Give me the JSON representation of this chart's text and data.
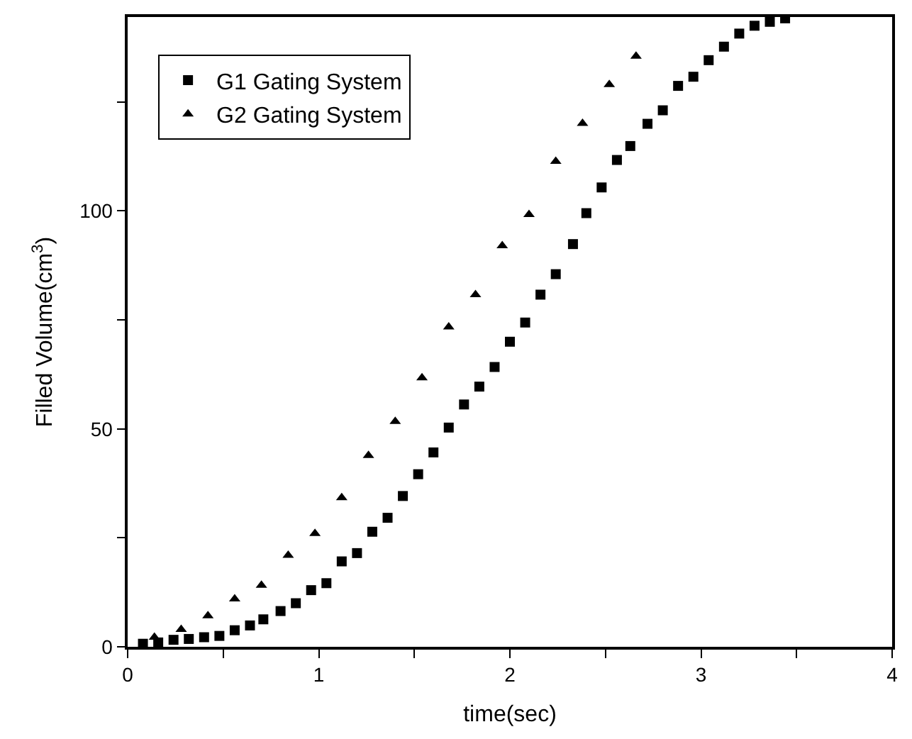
{
  "chart_data": {
    "type": "scatter",
    "xlabel": "time(sec)",
    "ylabel": "Filled Volume(cm$^{3}$)",
    "xlim": [
      0,
      4
    ],
    "ylim": [
      0,
      144.5
    ],
    "xticks": [
      0,
      {
        "value": 0.5,
        "label": null
      },
      1,
      {
        "value": 1.5,
        "label": null
      },
      2,
      {
        "value": 2.5,
        "label": null
      },
      3,
      {
        "value": 3.5,
        "label": null
      },
      4
    ],
    "yticks": [
      0,
      {
        "value": 25,
        "label": null
      },
      50,
      {
        "value": 75,
        "label": null
      },
      100,
      {
        "value": 125,
        "label": null
      }
    ],
    "legend": "top left",
    "series": [
      {
        "name": "G1 Gating System",
        "color": "#000000",
        "marker": "square",
        "x": [
          0.08,
          0.16,
          0.24,
          0.32,
          0.4,
          0.48,
          0.56,
          0.64,
          0.71,
          0.8,
          0.88,
          0.96,
          1.04,
          1.12,
          1.2,
          1.28,
          1.36,
          1.44,
          1.52,
          1.6,
          1.68,
          1.76,
          1.84,
          1.92,
          2.0,
          2.08,
          2.16,
          2.24,
          2.33,
          2.4,
          2.48,
          2.56,
          2.63,
          2.72,
          2.8,
          2.88,
          2.96,
          3.04,
          3.12,
          3.2,
          3.28,
          3.36,
          3.44
        ],
        "values": [
          0.7,
          1.0,
          1.6,
          1.8,
          2.2,
          2.5,
          3.8,
          4.9,
          6.3,
          8.2,
          10.0,
          13.0,
          14.6,
          19.6,
          21.5,
          26.4,
          29.6,
          34.6,
          39.6,
          44.6,
          50.3,
          55.6,
          59.7,
          64.2,
          70.0,
          74.4,
          80.8,
          85.5,
          92.4,
          99.5,
          105.4,
          111.7,
          114.9,
          120.0,
          123.1,
          128.7,
          130.8,
          134.6,
          137.7,
          140.7,
          142.5,
          143.4,
          144.2
        ]
      },
      {
        "name": "G2 Gating System",
        "color": "#000000",
        "marker": "triangle",
        "x": [
          0.14,
          0.28,
          0.42,
          0.56,
          0.7,
          0.84,
          0.98,
          1.12,
          1.26,
          1.4,
          1.54,
          1.68,
          1.82,
          1.96,
          2.1,
          2.24,
          2.38,
          2.52,
          2.66
        ],
        "values": [
          2.2,
          4.0,
          7.1,
          11.0,
          14.1,
          21.0,
          26.0,
          34.2,
          43.9,
          51.7,
          61.7,
          73.4,
          80.8,
          92.0,
          99.2,
          111.4,
          120.1,
          129.0,
          135.5
        ]
      }
    ]
  }
}
